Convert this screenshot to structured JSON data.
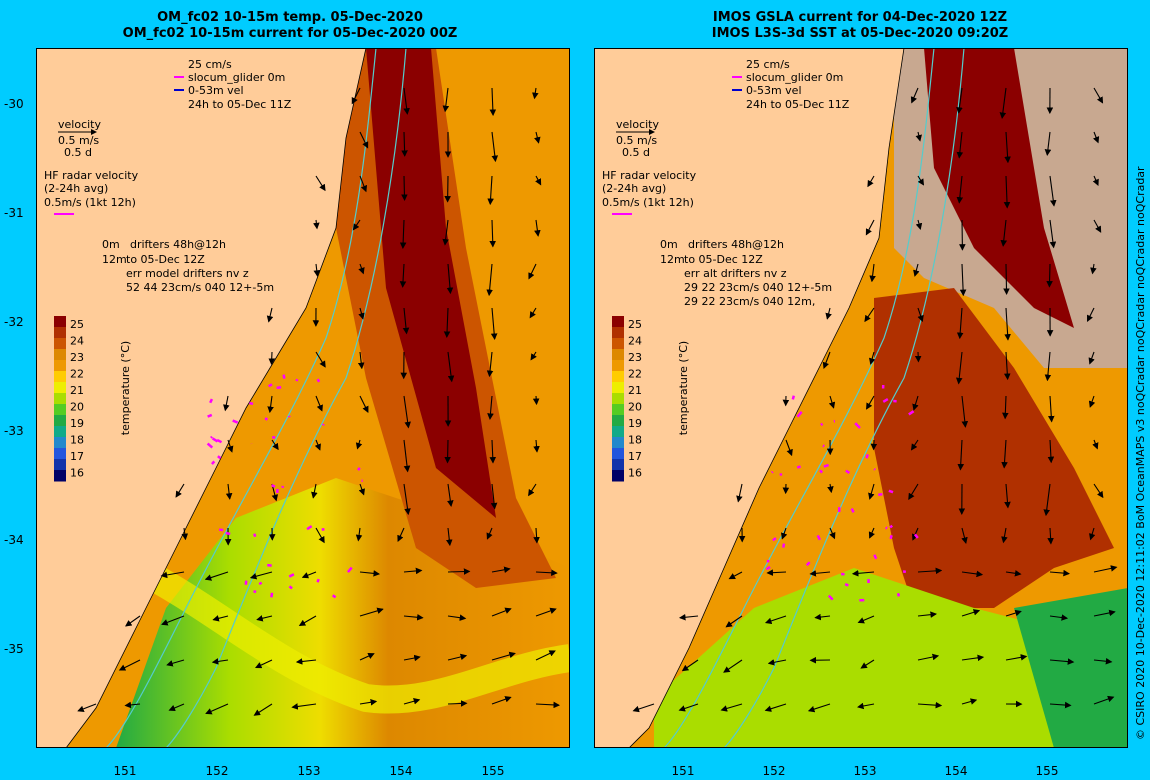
{
  "left_title": {
    "line1": "OM_fc02 10-15m temp. 05-Dec-2020",
    "line2": "OM_fc02 10-15m current for 05-Dec-2020 00Z"
  },
  "right_title": {
    "line1": "IMOS GSLA current for 04-Dec-2020 12Z",
    "line2": "IMOS L3S-3d SST at 05-Dec-2020 09:20Z"
  },
  "lat_ticks": [
    "-30",
    "-31",
    "-32",
    "-33",
    "-34",
    "-35"
  ],
  "lon_ticks": [
    "151",
    "152",
    "153",
    "154",
    "155"
  ],
  "legend": {
    "scale": "25 cm/s",
    "glider": "slocum_glider 0m",
    "glider_vel": "0-53m vel",
    "glider_time": "24h to 05-Dec 11Z",
    "velocity": "velocity",
    "velocity_scale": "0.5 m/s",
    "velocity_days": "0.5 d",
    "hf_title": "HF radar velocity",
    "hf_avg": "(2-24h avg)",
    "hf_scale": "0.5m/s (1kt 12h)",
    "drift_depth": "0m",
    "drift_title": "drifters 48h@12h",
    "drift_depth2": "12m",
    "drift_time": "to 05-Dec 12Z"
  },
  "left_err": {
    "line1": "err model drifters nv z",
    "line2": "52 44 23cm/s 040 12+-5m"
  },
  "right_err": {
    "line1": "err alt drifters nv z",
    "line2": "29 22 23cm/s 040 12+-5m",
    "line3": "29 22 23cm/s 040 12m,"
  },
  "colorbar": {
    "ticks": [
      "25",
      "24",
      "23",
      "22",
      "21",
      "20",
      "19",
      "18",
      "17",
      "16"
    ],
    "label": "temperature (°C)",
    "colors": [
      "#8b0000",
      "#b03000",
      "#cc5500",
      "#dd8800",
      "#ee9900",
      "#ffcc00",
      "#eeee00",
      "#aadd00",
      "#55cc22",
      "#22aa44",
      "#11aa88",
      "#2288cc",
      "#2255dd",
      "#1133aa",
      "#000066"
    ]
  },
  "credit": "© CSIRO 2020   10-Dec-2020 12:11:02 BoM OceanMAPS v3 noQCradar noQCradar noQCradar noQCradar"
}
